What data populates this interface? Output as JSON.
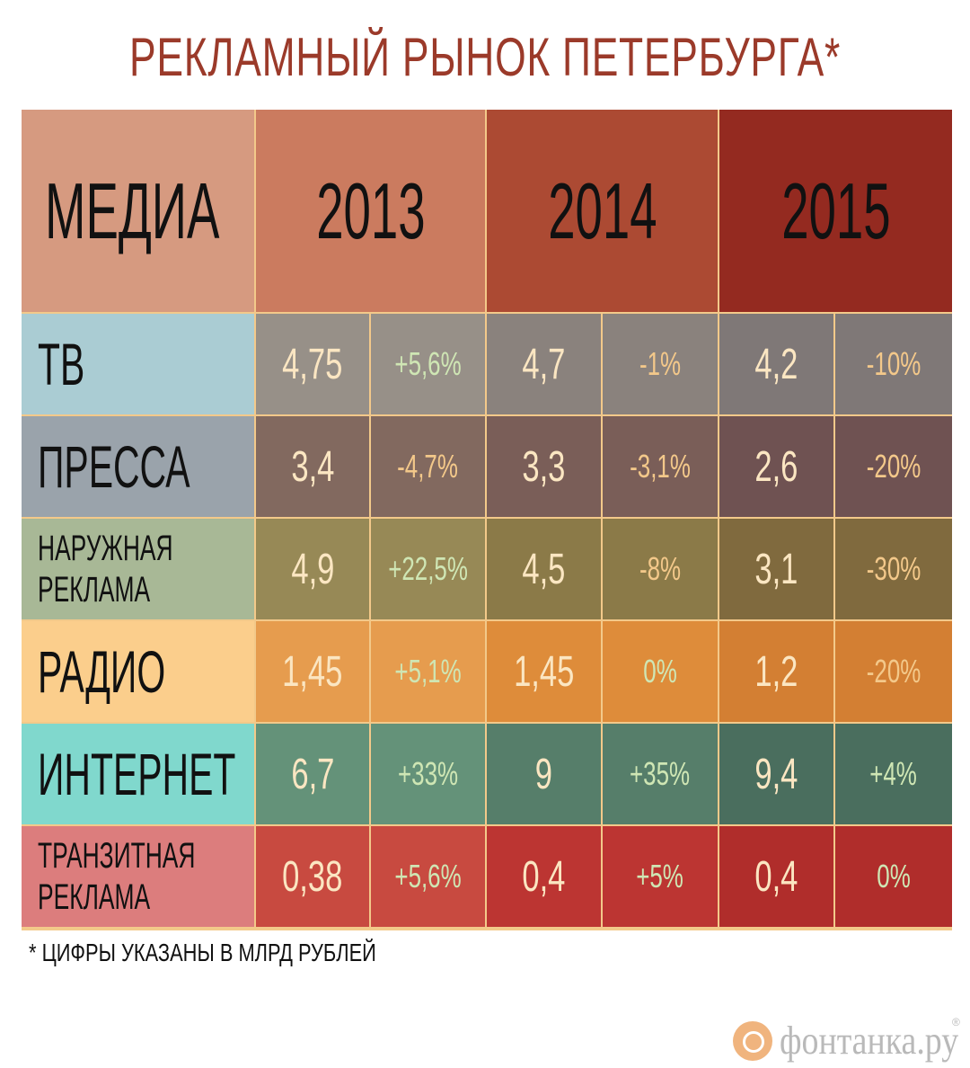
{
  "title": "РЕКЛАМНЫЙ РЫНОК ПЕТЕРБУРГА*",
  "footnote": "* ЦИФРЫ УКАЗАНЫ В МЛРД РУБЛЕЙ",
  "logo": {
    "text": "фонтанка.ру",
    "reg": "®",
    "icon": "fontanka-logo-icon"
  },
  "chart_data": {
    "type": "table",
    "title": "РЕКЛАМНЫЙ РЫНОК ПЕТЕРБУРГА*",
    "header": {
      "media": "МЕДИА",
      "years": [
        "2013",
        "2014",
        "2015"
      ]
    },
    "rows": [
      {
        "label": "ТВ",
        "values": [
          "4,75",
          "4,7",
          "4,2"
        ],
        "changes": [
          "+5,6%",
          "-1%",
          "-10%"
        ],
        "label_bg": "#aaccd3",
        "cell_bg": [
          "#979088",
          "#8a827d",
          "#7f7877"
        ]
      },
      {
        "label": "ПРЕССА",
        "values": [
          "3,4",
          "3,3",
          "2,6"
        ],
        "changes": [
          "-4,7%",
          "-3,1%",
          "-20%"
        ],
        "label_bg": "#9aa3ab",
        "cell_bg": [
          "#82695f",
          "#7a5e58",
          "#6f5252"
        ]
      },
      {
        "label": "НАРУЖНАЯ\nРЕКЛАМА",
        "values": [
          "4,9",
          "4,5",
          "3,1"
        ],
        "changes": [
          "+22,5%",
          "-8%",
          "-30%"
        ],
        "label_bg": "#a8b896",
        "cell_bg": [
          "#978956",
          "#8b7a48",
          "#806a3e"
        ]
      },
      {
        "label": "РАДИО",
        "values": [
          "1,45",
          "1,45",
          "1,2"
        ],
        "changes": [
          "+5,1%",
          "0%",
          "-20%"
        ],
        "label_bg": "#fbce8c",
        "cell_bg": [
          "#e69c4e",
          "#de8c3a",
          "#d37f33"
        ]
      },
      {
        "label": "ИНТЕРНЕТ",
        "values": [
          "6,7",
          "9",
          "9,4"
        ],
        "changes": [
          "+33%",
          "+35%",
          "+4%"
        ],
        "label_bg": "#80d8cd",
        "cell_bg": [
          "#649279",
          "#567e6a",
          "#4a6e5e"
        ]
      },
      {
        "label": "ТРАНЗИТНАЯ\nРЕКЛАМА",
        "values": [
          "0,38",
          "0,4",
          "0,4"
        ],
        "changes": [
          "+5,6%",
          "+5%",
          "0%"
        ],
        "label_bg": "#dc7d7d",
        "cell_bg": [
          "#c84a40",
          "#bc3532",
          "#b02d2b"
        ]
      }
    ],
    "header_colors": {
      "media": "#d69a80",
      "years": [
        "#cb7b5f",
        "#ac4a33",
        "#942a20"
      ]
    },
    "change_colors": {
      "positive": "#cfe6b4",
      "negative": "#f3c88a",
      "zero": "#cfe6b4"
    },
    "unit": "млрд рублей"
  }
}
